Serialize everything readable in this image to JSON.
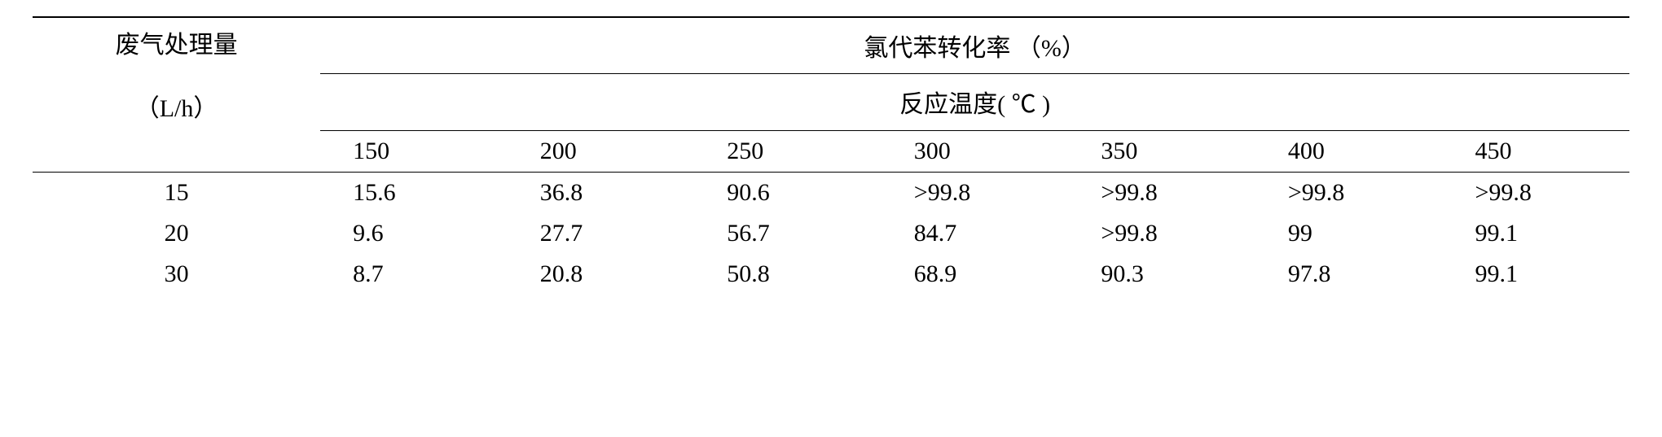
{
  "table": {
    "row_header_line1": "废气处理量",
    "row_header_line2": "（L/h）",
    "main_title": "氯代苯转化率 （%）",
    "sub_title": "反应温度( ℃ )",
    "temperatures": [
      "150",
      "200",
      "250",
      "300",
      "350",
      "400",
      "450"
    ],
    "rows": [
      {
        "label": "15",
        "values": [
          "15.6",
          "36.8",
          "90.6",
          ">99.8",
          ">99.8",
          ">99.8",
          ">99.8"
        ]
      },
      {
        "label": "20",
        "values": [
          "9.6",
          "27.7",
          "56.7",
          "84.7",
          ">99.8",
          "99",
          "99.1"
        ]
      },
      {
        "label": "30",
        "values": [
          "8.7",
          "20.8",
          "50.8",
          "68.9",
          "90.3",
          "97.8",
          "99.1"
        ]
      }
    ]
  }
}
